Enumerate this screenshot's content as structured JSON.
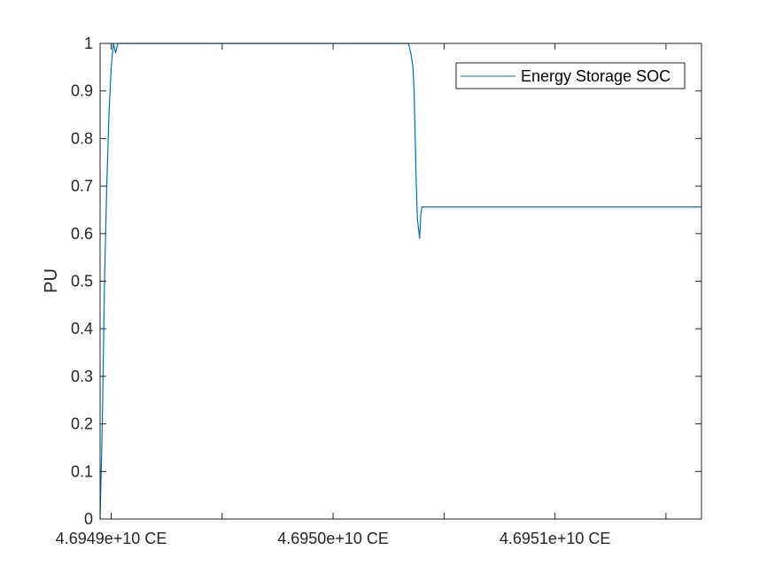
{
  "chart_data": {
    "type": "line",
    "title": "",
    "xlabel": "",
    "ylabel": "PU",
    "x_tick_labels": [
      "4.6949e+10 CE",
      "4.6950e+10 CE",
      "4.6951e+10 CE"
    ],
    "x_tick_values": [
      46949000000,
      46950000000,
      46951000000
    ],
    "x_minor_tick_values": [
      46949500000,
      46950500000,
      46951500000
    ],
    "xlim": [
      46948950000,
      46951660000
    ],
    "ylim": [
      0,
      1
    ],
    "y_tick_values": [
      0,
      0.1,
      0.2,
      0.3,
      0.4,
      0.5,
      0.6,
      0.7,
      0.8,
      0.9,
      1
    ],
    "y_tick_labels": [
      "0",
      "0.1",
      "0.2",
      "0.3",
      "0.4",
      "0.5",
      "0.6",
      "0.7",
      "0.8",
      "0.9",
      "1"
    ],
    "grid": false,
    "legend_position": "top-right",
    "series": [
      {
        "name": "Energy Storage SOC",
        "color": "#0072BD",
        "x": [
          46948950000,
          46948960000,
          46948970000,
          46948980000,
          46948990000,
          46949000000,
          46949010000,
          46949020000,
          46949030000,
          46949040000,
          46950340000,
          46950350000,
          46950360000,
          46950365000,
          46950370000,
          46950375000,
          46950380000,
          46950390000,
          46950395000,
          46950400000,
          46951660000
        ],
        "y": [
          0.0,
          0.2,
          0.5,
          0.7,
          0.85,
          0.95,
          1.0,
          0.98,
          1.0,
          1.0,
          1.0,
          0.98,
          0.95,
          0.9,
          0.8,
          0.7,
          0.63,
          0.59,
          0.64,
          0.656,
          0.656
        ]
      }
    ]
  }
}
